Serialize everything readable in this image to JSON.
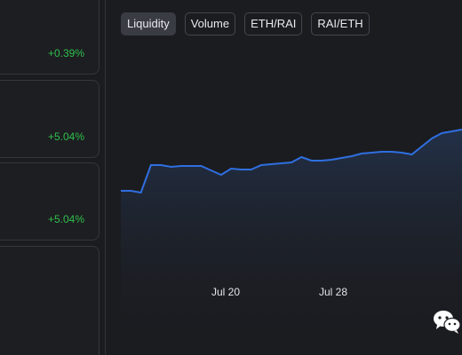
{
  "stat_cards": [
    {
      "change": "+0.39%"
    },
    {
      "change": "+5.04%"
    },
    {
      "change": "+5.04%"
    },
    {
      "change": ""
    }
  ],
  "tabs": [
    {
      "label": "Liquidity",
      "active": true
    },
    {
      "label": "Volume",
      "active": false
    },
    {
      "label": "ETH/RAI",
      "active": false
    },
    {
      "label": "RAI/ETH",
      "active": false
    }
  ],
  "chart_data": {
    "type": "area",
    "x_tick_labels": [
      "Jul 20",
      "Jul 28"
    ],
    "values": [
      215,
      215,
      217,
      186,
      186,
      188,
      187,
      187,
      187,
      192,
      197,
      190,
      191,
      191,
      186,
      185,
      184,
      183,
      177,
      181,
      181,
      180,
      178,
      176,
      173,
      172,
      171,
      171,
      172,
      174,
      165,
      156,
      150,
      148,
      146
    ],
    "line_color": "#2f6fe0",
    "positive_color": "#2fbf4a"
  },
  "watermark": {
    "icon": "wechat-icon"
  }
}
